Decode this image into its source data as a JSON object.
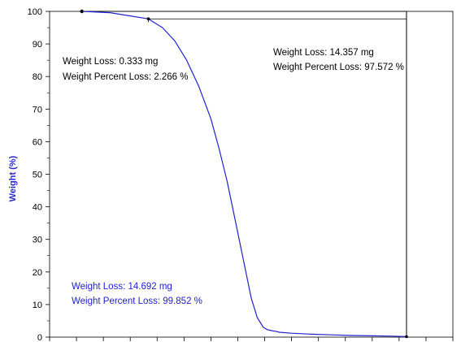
{
  "chart_data": {
    "type": "line",
    "title": "",
    "xlabel": "",
    "ylabel": "Weight  (%)",
    "ylim": [
      0,
      100
    ],
    "xlim": [
      0,
      100
    ],
    "yticks": [
      "0",
      "10",
      "20",
      "30",
      "40",
      "50",
      "60",
      "70",
      "80",
      "90",
      "100"
    ],
    "grid": false,
    "series": [
      {
        "color": "#2222cc",
        "x": [
          8.0,
          15,
          20,
          24.5,
          28,
          31,
          34,
          37,
          40,
          42,
          44,
          46,
          48,
          50,
          51.5,
          53,
          54,
          55,
          56,
          57,
          60,
          65,
          70,
          75,
          80,
          85,
          88.5
        ],
        "y": [
          100,
          99.6,
          98.6,
          97.7,
          95.0,
          91.0,
          85.0,
          77.0,
          67.0,
          58.0,
          48.0,
          36.0,
          24.0,
          12.0,
          6.0,
          3.0,
          2.3,
          2.0,
          1.8,
          1.5,
          1.2,
          0.9,
          0.7,
          0.5,
          0.4,
          0.3,
          0.15
        ]
      }
    ],
    "annotations": [
      {
        "line1": "Weight Loss: 0.333 mg",
        "line2": "Weight Percent Loss: 2.266 %",
        "color": "#000000"
      },
      {
        "line1": "Weight Loss: 14.357 mg",
        "line2": "Weight Percent Loss: 97.572 %",
        "color": "#000000"
      },
      {
        "line1": "Weight Loss: 14.692 mg",
        "line2": "Weight Percent Loss: 99.852 %",
        "color": "#2222cc"
      }
    ],
    "markers": {
      "start": [
        8.0,
        100
      ],
      "step1": [
        24.5,
        97.7
      ],
      "end": [
        88.5,
        0.15
      ]
    }
  }
}
